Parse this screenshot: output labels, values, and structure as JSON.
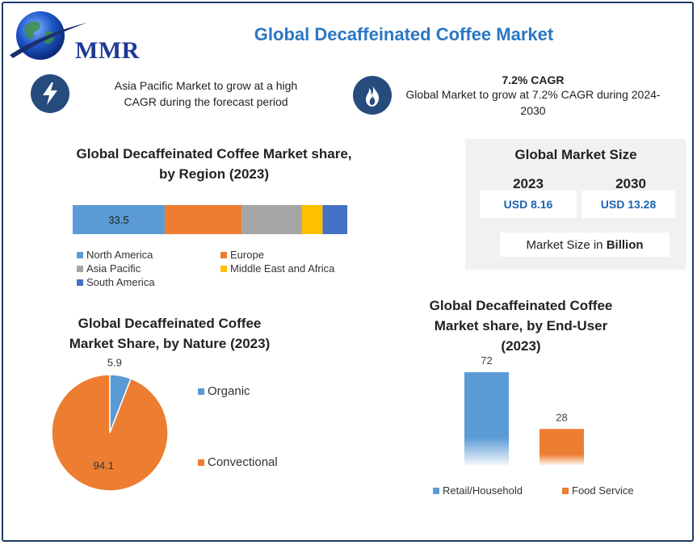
{
  "header": {
    "logo_text": "MMR",
    "title": "Global Decaffeinated Coffee Market"
  },
  "highlights": [
    {
      "icon": "lightning-icon",
      "title": "",
      "text": "Asia Pacific Market to grow at a high CAGR during the forecast period"
    },
    {
      "icon": "flame-icon",
      "title": "7.2% CAGR",
      "text": "Global Market to grow at 7.2% CAGR during 2024-2030"
    }
  ],
  "market_size": {
    "title": "Global Market Size",
    "years": [
      {
        "year": "2023",
        "value": "USD 8.16"
      },
      {
        "year": "2030",
        "value": "USD 13.28"
      }
    ],
    "note_prefix": "Market Size in ",
    "note_bold": "Billion"
  },
  "colors": {
    "north_america": "#5b9bd5",
    "europe": "#ed7d31",
    "asia_pacific": "#a5a5a5",
    "mea": "#ffc000",
    "south_america": "#4472c4",
    "title_blue": "#2a77c4",
    "icon_navy": "#264c7e"
  },
  "chart_data": [
    {
      "type": "bar",
      "orientation": "horizontal-stacked",
      "title": "Global Decaffeinated Coffee Market share, by Region (2023)",
      "title_lines": [
        "Global Decaffeinated Coffee Market share,",
        "by Region (2023)"
      ],
      "series": [
        {
          "name": "North America",
          "value": 33.5,
          "label": "33.5",
          "color": "#5b9bd5"
        },
        {
          "name": "Europe",
          "value": 28,
          "label": "",
          "color": "#ed7d31"
        },
        {
          "name": "Asia Pacific",
          "value": 22,
          "label": "",
          "color": "#a5a5a5"
        },
        {
          "name": "Middle East and Africa",
          "value": 7.5,
          "label": "",
          "color": "#ffc000"
        },
        {
          "name": "South America",
          "value": 9,
          "label": "",
          "color": "#4472c4"
        }
      ],
      "legend_position": "bottom"
    },
    {
      "type": "pie",
      "title": "Global Decaffeinated Coffee Market Share, by Nature (2023)",
      "title_lines": [
        "Global Decaffeinated Coffee",
        "Market Share, by Nature (2023)"
      ],
      "slices": [
        {
          "name": "Organic",
          "value": 5.9,
          "label": "5.9",
          "color": "#5b9bd5"
        },
        {
          "name": "Convectional",
          "value": 94.1,
          "label": "94.1",
          "color": "#ed7d31"
        }
      ],
      "legend_position": "right"
    },
    {
      "type": "bar",
      "title": "Global Decaffeinated Coffee Market share, by End-User (2023)",
      "title_lines": [
        "Global Decaffeinated Coffee",
        "Market share, by End-User",
        "(2023)"
      ],
      "categories": [
        "Retail/Household",
        "Food Service"
      ],
      "values": [
        72,
        28
      ],
      "labels": [
        "72",
        "28"
      ],
      "colors": [
        "#5b9bd5",
        "#ed7d31"
      ],
      "legend_position": "bottom"
    }
  ]
}
